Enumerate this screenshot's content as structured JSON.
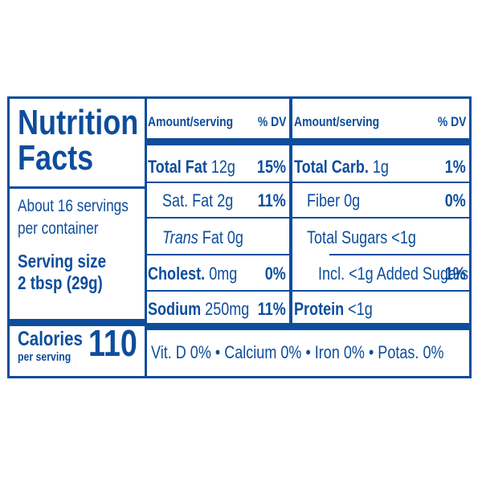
{
  "panel": {
    "title_line1": "Nutrition",
    "title_line2": "Facts",
    "servings_line1": "About 16 servings",
    "servings_line2": "per container",
    "serving_size_label": "Serving size",
    "serving_size_value": "2 tbsp (29g)",
    "calories_label": "Calories",
    "calories_sub": "per serving",
    "calories_value": "110"
  },
  "headers": {
    "left_amount": "Amount/serving",
    "left_dv": "% DV",
    "right_amount": "Amount/serving",
    "right_dv": "% DV"
  },
  "left_rows": [
    {
      "name": "Total Fat",
      "amount": "12g",
      "dv": "15%"
    },
    {
      "name": "Sat. Fat",
      "amount": "2g",
      "dv": "11%"
    },
    {
      "prefix": "Trans",
      "name": "Fat",
      "amount": "0g",
      "dv": ""
    },
    {
      "name": "Cholest.",
      "amount": "0mg",
      "dv": "0%"
    },
    {
      "name": "Sodium",
      "amount": "250mg",
      "dv": "11%"
    }
  ],
  "right_rows": [
    {
      "name": "Total Carb.",
      "amount": "1g",
      "dv": "1%"
    },
    {
      "name": "Fiber",
      "amount": "0g",
      "dv": "0%"
    },
    {
      "name": "Total Sugars",
      "amount": "<1g",
      "dv": ""
    },
    {
      "name": "Incl. <1g Added Sugars",
      "amount": "",
      "dv": "1%"
    },
    {
      "name": "Protein",
      "amount": "<1g",
      "dv": ""
    }
  ],
  "footer": {
    "vitamins": "Vit. D 0% • Calcium 0% • Iron 0% • Potas. 0%"
  },
  "colors": {
    "ink": "#0d4d9c",
    "background": "#ffffff"
  }
}
